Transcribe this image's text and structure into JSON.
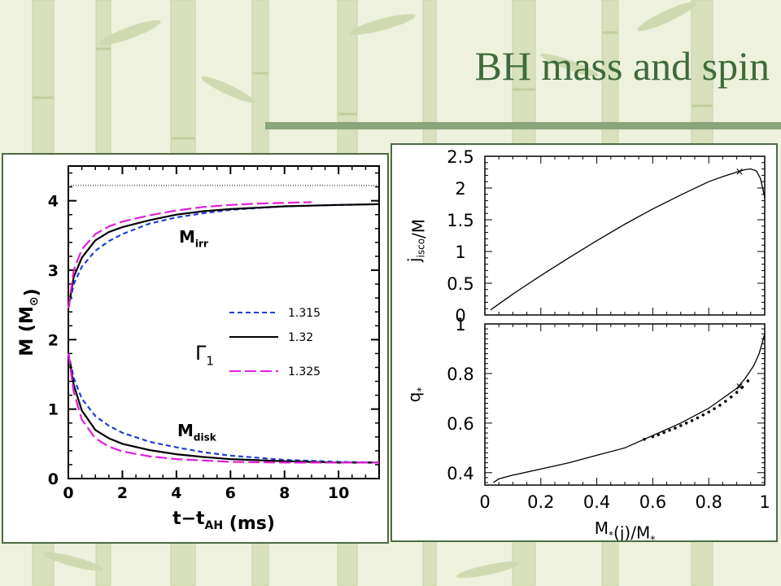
{
  "slide": {
    "title": "BH mass and spin",
    "colors": {
      "title": "#3e6b3a",
      "background": "#eef1dc",
      "bamboo": "#d6dfb8",
      "rule": "#8aa57a",
      "panel_border": "#4d6b45"
    }
  },
  "chart_data": [
    {
      "type": "line",
      "xlabel": "t−t",
      "xlabel_sub": "AH",
      "xlabel_unit": "(ms)",
      "ylabel": "M (M",
      "ylabel_sub": "⊙",
      "ylabel_close": ")",
      "xlim": [
        0,
        11.5
      ],
      "ylim": [
        0,
        4.5
      ],
      "xticks": [
        "0",
        "2",
        "4",
        "6",
        "8",
        "10"
      ],
      "yticks": [
        "0",
        "1",
        "2",
        "3",
        "4"
      ],
      "annotations": {
        "upper": "M",
        "upper_sub": "irr",
        "lower": "M",
        "lower_sub": "disk",
        "legend_title": "Γ",
        "legend_title_sub": "1"
      },
      "legend": {
        "position": "center-left",
        "entries": [
          "1.315",
          "1.32",
          "1.325"
        ]
      },
      "reference_line": {
        "y": 4.22,
        "style": "dotted"
      },
      "series": [
        {
          "name": "1.315",
          "color": "#1f3fd1",
          "dash": "6,4",
          "quantity": "Mirr",
          "x": [
            0,
            0.2,
            0.5,
            1,
            1.5,
            2,
            3,
            4,
            5,
            6,
            8,
            10,
            11.5
          ],
          "y": [
            2.45,
            2.8,
            3.05,
            3.28,
            3.42,
            3.52,
            3.67,
            3.76,
            3.82,
            3.87,
            3.92,
            3.94,
            3.95
          ]
        },
        {
          "name": "1.32",
          "color": "#000000",
          "dash": "",
          "quantity": "Mirr",
          "x": [
            0,
            0.2,
            0.5,
            1,
            1.5,
            2,
            3,
            4,
            5,
            6,
            8,
            10,
            11.5
          ],
          "y": [
            2.45,
            2.9,
            3.18,
            3.43,
            3.55,
            3.62,
            3.72,
            3.8,
            3.85,
            3.88,
            3.92,
            3.94,
            3.95
          ]
        },
        {
          "name": "1.325",
          "color": "#e01fd6",
          "dash": "14,5",
          "quantity": "Mirr",
          "x": [
            0,
            0.2,
            0.5,
            1,
            1.5,
            2,
            3,
            4,
            5,
            6,
            7,
            8,
            9
          ],
          "y": [
            2.45,
            3.0,
            3.3,
            3.52,
            3.63,
            3.7,
            3.79,
            3.86,
            3.91,
            3.94,
            3.96,
            3.97,
            3.98
          ]
        },
        {
          "name": "1.315",
          "color": "#1f3fd1",
          "dash": "6,4",
          "quantity": "Mdisk",
          "x": [
            0,
            0.2,
            0.5,
            1,
            1.5,
            2,
            3,
            4,
            5,
            6,
            8,
            10,
            11.5
          ],
          "y": [
            1.8,
            1.45,
            1.15,
            0.9,
            0.76,
            0.66,
            0.53,
            0.45,
            0.38,
            0.33,
            0.27,
            0.24,
            0.23
          ]
        },
        {
          "name": "1.32",
          "color": "#000000",
          "dash": "",
          "quantity": "Mdisk",
          "x": [
            0,
            0.2,
            0.5,
            1,
            1.5,
            2,
            3,
            4,
            5,
            6,
            8,
            10,
            11.5
          ],
          "y": [
            1.8,
            1.35,
            0.98,
            0.7,
            0.58,
            0.5,
            0.41,
            0.35,
            0.31,
            0.28,
            0.25,
            0.23,
            0.23
          ]
        },
        {
          "name": "1.325",
          "color": "#e01fd6",
          "dash": "14,5",
          "quantity": "Mdisk",
          "x": [
            0,
            0.2,
            0.5,
            1,
            1.5,
            2,
            3,
            4,
            5,
            6,
            8,
            10,
            11.5
          ],
          "y": [
            1.8,
            1.25,
            0.85,
            0.58,
            0.46,
            0.39,
            0.32,
            0.28,
            0.26,
            0.24,
            0.23,
            0.23,
            0.23
          ]
        }
      ]
    },
    {
      "type": "line",
      "xlabel": "",
      "ylabel": "j",
      "ylabel_sub": "isco",
      "ylabel_tail": "/M",
      "xlim": [
        0,
        1
      ],
      "ylim": [
        0,
        2.5
      ],
      "yticks": [
        "0",
        "0.5",
        "1",
        "1.5",
        "2",
        "2.5"
      ],
      "marker": {
        "x": 0.91,
        "y": 2.27,
        "symbol": "×"
      },
      "series": [
        {
          "color": "#000000",
          "x": [
            0.02,
            0.1,
            0.2,
            0.3,
            0.4,
            0.5,
            0.6,
            0.7,
            0.8,
            0.85,
            0.9,
            0.93,
            0.95,
            0.97,
            0.985,
            1.0
          ],
          "y": [
            0.08,
            0.33,
            0.62,
            0.9,
            1.17,
            1.43,
            1.67,
            1.89,
            2.1,
            2.18,
            2.25,
            2.29,
            2.3,
            2.27,
            2.15,
            1.85
          ]
        }
      ]
    },
    {
      "type": "line",
      "xlabel": "M",
      "xlabel_sub": "*",
      "xlabel_tail": "(j)/M",
      "xlabel_sub2": "*",
      "ylabel": "q",
      "ylabel_sub": "*",
      "xlim": [
        0,
        1
      ],
      "ylim": [
        0.35,
        1.0
      ],
      "xticks": [
        "0",
        "0.2",
        "0.4",
        "0.6",
        "0.8",
        "1"
      ],
      "yticks": [
        "0.4",
        "0.6",
        "0.8",
        "1"
      ],
      "marker": {
        "x": 0.91,
        "y": 0.75,
        "symbol": "×"
      },
      "series": [
        {
          "color": "#000000",
          "x": [
            0.03,
            0.05,
            0.1,
            0.2,
            0.3,
            0.4,
            0.5,
            0.6,
            0.7,
            0.8,
            0.85,
            0.9,
            0.93,
            0.96,
            0.98,
            1.0
          ],
          "y": [
            0.36,
            0.375,
            0.39,
            0.415,
            0.44,
            0.47,
            0.5,
            0.55,
            0.6,
            0.66,
            0.7,
            0.74,
            0.78,
            0.83,
            0.88,
            0.96
          ]
        }
      ],
      "points": {
        "x": [
          0.57,
          0.6,
          0.62,
          0.64,
          0.66,
          0.68,
          0.7,
          0.72,
          0.74,
          0.76,
          0.78,
          0.8,
          0.82,
          0.84,
          0.86,
          0.88,
          0.9,
          0.92,
          0.94
        ],
        "y": [
          0.535,
          0.545,
          0.553,
          0.562,
          0.571,
          0.58,
          0.59,
          0.6,
          0.61,
          0.621,
          0.633,
          0.645,
          0.658,
          0.672,
          0.688,
          0.705,
          0.724,
          0.745,
          0.77
        ]
      }
    }
  ]
}
